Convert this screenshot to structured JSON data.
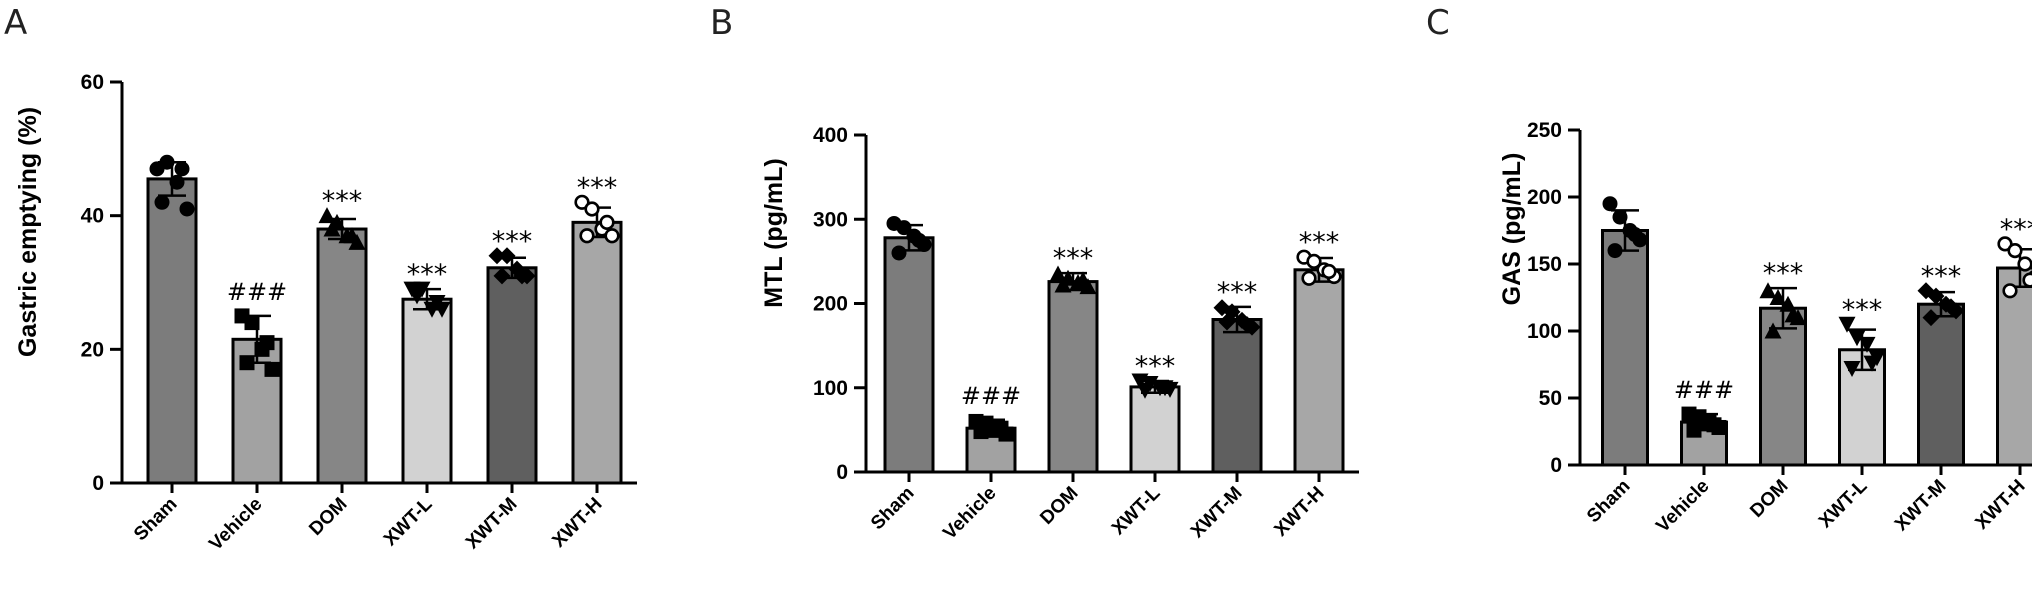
{
  "chart_data": [
    {
      "type": "bar",
      "panel": "A",
      "ylabel": "Gastric emptying (%)",
      "ylim": [
        0,
        60
      ],
      "yticks": [
        "0",
        "20",
        "40",
        "60"
      ],
      "categories": [
        "Sham",
        "Vehicle",
        "DOM",
        "XWT-L",
        "XWT-M",
        "XWT-H"
      ],
      "values": [
        45.5,
        21.5,
        38,
        27.5,
        32.2,
        39
      ],
      "errors": [
        2.5,
        3.5,
        1.5,
        1.5,
        1.5,
        2.2
      ],
      "points": [
        [
          47,
          48,
          45,
          41,
          42,
          47
        ],
        [
          25,
          24,
          20,
          17,
          18,
          21
        ],
        [
          40,
          39,
          37,
          36,
          38,
          37
        ],
        [
          29,
          29,
          26,
          26,
          28,
          27
        ],
        [
          34,
          34,
          32,
          31,
          31,
          31
        ],
        [
          42,
          41,
          38,
          37,
          37,
          39
        ]
      ],
      "annotations": [
        "",
        "###",
        "***",
        "***",
        "***",
        "***"
      ],
      "colors": [
        "#7c7c7c",
        "#a2a2a2",
        "#868686",
        "#d2d2d2",
        "#5f5f5f",
        "#a7a7a7"
      ],
      "markers": [
        "circle",
        "square",
        "triangle",
        "triangle-down",
        "diamond",
        "circle-open"
      ]
    },
    {
      "type": "bar",
      "panel": "B",
      "ylabel": "MTL (pg/mL)",
      "ylim": [
        0,
        400
      ],
      "yticks": [
        "0",
        "100",
        "200",
        "300",
        "400"
      ],
      "categories": [
        "Sham",
        "Vehicle",
        "DOM",
        "XWT-L",
        "XWT-M",
        "XWT-H"
      ],
      "values": [
        278,
        52,
        226,
        101,
        181,
        240
      ],
      "errors": [
        15,
        10,
        10,
        7,
        15,
        14
      ],
      "points": [
        [
          295,
          290,
          280,
          270,
          260,
          275
        ],
        [
          60,
          58,
          50,
          45,
          48,
          52
        ],
        [
          235,
          230,
          225,
          220,
          222,
          228
        ],
        [
          108,
          105,
          100,
          98,
          97,
          100
        ],
        [
          195,
          190,
          180,
          172,
          178,
          175
        ],
        [
          255,
          250,
          240,
          232,
          230,
          238
        ]
      ],
      "annotations": [
        "",
        "###",
        "***",
        "***",
        "***",
        "***"
      ],
      "colors": [
        "#7c7c7c",
        "#a2a2a2",
        "#868686",
        "#d2d2d2",
        "#5f5f5f",
        "#a7a7a7"
      ],
      "markers": [
        "circle",
        "square",
        "triangle",
        "triangle-down",
        "diamond",
        "circle-open"
      ]
    },
    {
      "type": "bar",
      "panel": "C",
      "ylabel": "GAS (pg/mL)",
      "ylim": [
        0,
        250
      ],
      "yticks": [
        "0",
        "50",
        "100",
        "150",
        "200",
        "250"
      ],
      "categories": [
        "Sham",
        "Vehicle",
        "DOM",
        "XWT-L",
        "XWT-M",
        "XWT-H"
      ],
      "values": [
        175,
        32,
        117,
        86,
        120,
        147
      ],
      "errors": [
        15,
        6,
        15,
        15,
        9,
        14
      ],
      "points": [
        [
          195,
          185,
          175,
          168,
          160,
          172
        ],
        [
          38,
          36,
          32,
          28,
          26,
          30
        ],
        [
          130,
          125,
          120,
          110,
          100,
          112
        ],
        [
          105,
          95,
          90,
          80,
          72,
          76
        ],
        [
          130,
          126,
          120,
          115,
          110,
          118
        ],
        [
          165,
          160,
          150,
          140,
          130,
          138
        ]
      ],
      "annotations": [
        "",
        "###",
        "***",
        "***",
        "***",
        "***"
      ],
      "colors": [
        "#7c7c7c",
        "#a2a2a2",
        "#868686",
        "#d2d2d2",
        "#5f5f5f",
        "#a7a7a7"
      ],
      "markers": [
        "circle",
        "square",
        "triangle",
        "triangle-down",
        "diamond",
        "circle-open"
      ]
    }
  ]
}
